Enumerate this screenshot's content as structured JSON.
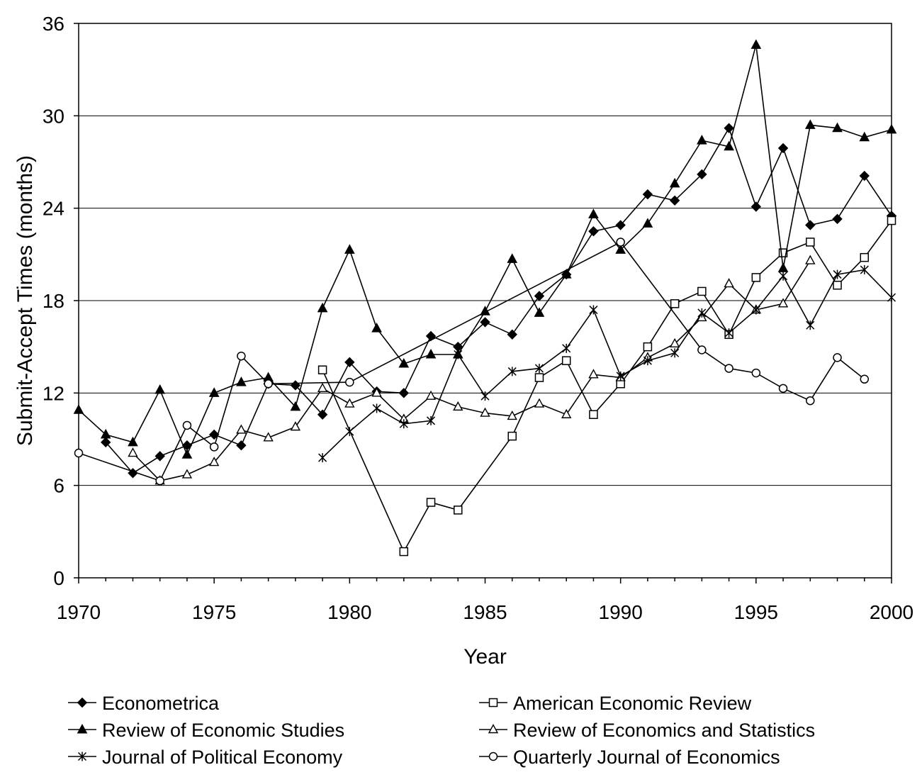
{
  "chart_data": {
    "type": "line",
    "xlabel": "Year",
    "ylabel": "Submit-Accept Times (months)",
    "xlim": [
      1970,
      2000
    ],
    "ylim": [
      0,
      36
    ],
    "xticks": [
      1970,
      1975,
      1980,
      1985,
      1990,
      1995,
      2000
    ],
    "yticks": [
      0,
      6,
      12,
      18,
      24,
      30,
      36
    ],
    "grid": "horizontal",
    "legend_position": "bottom",
    "colors": {
      "line": "#000000",
      "grid": "#000000",
      "background": "#ffffff"
    },
    "series": [
      {
        "name": "Econometrica",
        "marker": "filled-diamond",
        "points": [
          [
            1971,
            8.8
          ],
          [
            1972,
            6.8
          ],
          [
            1973,
            7.9
          ],
          [
            1974,
            8.6
          ],
          [
            1975,
            9.3
          ],
          [
            1976,
            8.6
          ],
          [
            1977,
            12.6
          ],
          [
            1978,
            12.5
          ],
          [
            1979,
            10.6
          ],
          [
            1980,
            14.0
          ],
          [
            1981,
            12.1
          ],
          [
            1982,
            12.0
          ],
          [
            1983,
            15.7
          ],
          [
            1984,
            15.0
          ],
          [
            1985,
            16.6
          ],
          [
            1986,
            15.8
          ],
          [
            1987,
            18.3
          ],
          [
            1988,
            19.7
          ],
          [
            1989,
            22.5
          ],
          [
            1990,
            22.9
          ],
          [
            1991,
            24.9
          ],
          [
            1992,
            24.5
          ],
          [
            1993,
            26.2
          ],
          [
            1994,
            29.2
          ],
          [
            1995,
            24.1
          ],
          [
            1996,
            27.9
          ],
          [
            1997,
            22.9
          ],
          [
            1998,
            23.3
          ],
          [
            1999,
            26.1
          ],
          [
            2000,
            23.5
          ]
        ]
      },
      {
        "name": "American Economic Review",
        "marker": "open-square",
        "points": [
          [
            1979,
            13.5
          ],
          [
            1982,
            1.7
          ],
          [
            1983,
            4.9
          ],
          [
            1984,
            4.4
          ],
          [
            1986,
            9.2
          ],
          [
            1987,
            13.0
          ],
          [
            1988,
            14.1
          ],
          [
            1989,
            10.6
          ],
          [
            1990,
            12.6
          ],
          [
            1991,
            15.0
          ],
          [
            1992,
            17.8
          ],
          [
            1993,
            18.6
          ],
          [
            1994,
            15.8
          ],
          [
            1995,
            19.5
          ],
          [
            1996,
            21.1
          ],
          [
            1997,
            21.8
          ],
          [
            1998,
            19.0
          ],
          [
            1999,
            20.8
          ],
          [
            2000,
            23.2
          ]
        ]
      },
      {
        "name": "Review of Economic Studies",
        "marker": "filled-triangle",
        "points": [
          [
            1970,
            10.9
          ],
          [
            1971,
            9.3
          ],
          [
            1972,
            8.8
          ],
          [
            1973,
            12.2
          ],
          [
            1974,
            8.0
          ],
          [
            1975,
            12.0
          ],
          [
            1976,
            12.7
          ],
          [
            1977,
            13.0
          ],
          [
            1978,
            11.1
          ],
          [
            1979,
            17.5
          ],
          [
            1980,
            21.3
          ],
          [
            1981,
            16.2
          ],
          [
            1982,
            13.9
          ],
          [
            1983,
            14.5
          ],
          [
            1984,
            14.5
          ],
          [
            1985,
            17.3
          ],
          [
            1986,
            20.7
          ],
          [
            1987,
            17.2
          ],
          [
            1988,
            19.7
          ],
          [
            1989,
            23.6
          ],
          [
            1990,
            21.3
          ],
          [
            1991,
            23.0
          ],
          [
            1992,
            25.6
          ],
          [
            1993,
            28.4
          ],
          [
            1994,
            28.0
          ],
          [
            1995,
            34.6
          ],
          [
            1996,
            20.1
          ],
          [
            1997,
            29.4
          ],
          [
            1998,
            29.2
          ],
          [
            1999,
            28.6
          ],
          [
            2000,
            29.1
          ]
        ]
      },
      {
        "name": "Review of Economics and Statistics",
        "marker": "open-triangle",
        "points": [
          [
            1972,
            8.1
          ],
          [
            1973,
            6.3
          ],
          [
            1974,
            6.7
          ],
          [
            1975,
            7.5
          ],
          [
            1976,
            9.6
          ],
          [
            1977,
            9.1
          ],
          [
            1978,
            9.8
          ],
          [
            1979,
            12.3
          ],
          [
            1980,
            11.3
          ],
          [
            1981,
            12.0
          ],
          [
            1982,
            10.3
          ],
          [
            1983,
            11.8
          ],
          [
            1984,
            11.1
          ],
          [
            1985,
            10.7
          ],
          [
            1986,
            10.5
          ],
          [
            1987,
            11.3
          ],
          [
            1988,
            10.6
          ],
          [
            1989,
            13.2
          ],
          [
            1990,
            13.0
          ],
          [
            1991,
            14.3
          ],
          [
            1992,
            15.2
          ],
          [
            1993,
            16.9
          ],
          [
            1994,
            19.1
          ],
          [
            1995,
            17.4
          ],
          [
            1996,
            17.8
          ],
          [
            1997,
            20.6
          ]
        ]
      },
      {
        "name": "Journal of Political Economy",
        "marker": "asterisk",
        "points": [
          [
            1979,
            7.8
          ],
          [
            1980,
            9.5
          ],
          [
            1981,
            11.0
          ],
          [
            1982,
            10.0
          ],
          [
            1983,
            10.2
          ],
          [
            1984,
            14.5
          ],
          [
            1985,
            11.8
          ],
          [
            1986,
            13.4
          ],
          [
            1987,
            13.6
          ],
          [
            1988,
            14.9
          ],
          [
            1989,
            17.4
          ],
          [
            1990,
            13.1
          ],
          [
            1991,
            14.1
          ],
          [
            1992,
            14.6
          ],
          [
            1993,
            17.2
          ],
          [
            1994,
            15.9
          ],
          [
            1995,
            17.4
          ],
          [
            1996,
            19.6
          ],
          [
            1997,
            16.4
          ],
          [
            1998,
            19.7
          ],
          [
            1999,
            20.0
          ],
          [
            2000,
            18.2
          ]
        ]
      },
      {
        "name": "Quarterly Journal of Economics",
        "marker": "open-circle",
        "points": [
          [
            1970,
            8.1
          ],
          [
            1973,
            6.3
          ],
          [
            1974,
            9.9
          ],
          [
            1975,
            8.5
          ],
          [
            1976,
            14.4
          ],
          [
            1977,
            12.6
          ],
          [
            1980,
            12.7
          ],
          [
            1990,
            21.8
          ],
          [
            1993,
            14.8
          ],
          [
            1994,
            13.6
          ],
          [
            1995,
            13.3
          ],
          [
            1996,
            12.3
          ],
          [
            1997,
            11.5
          ],
          [
            1998,
            14.3
          ],
          [
            1999,
            12.9
          ]
        ]
      }
    ]
  }
}
